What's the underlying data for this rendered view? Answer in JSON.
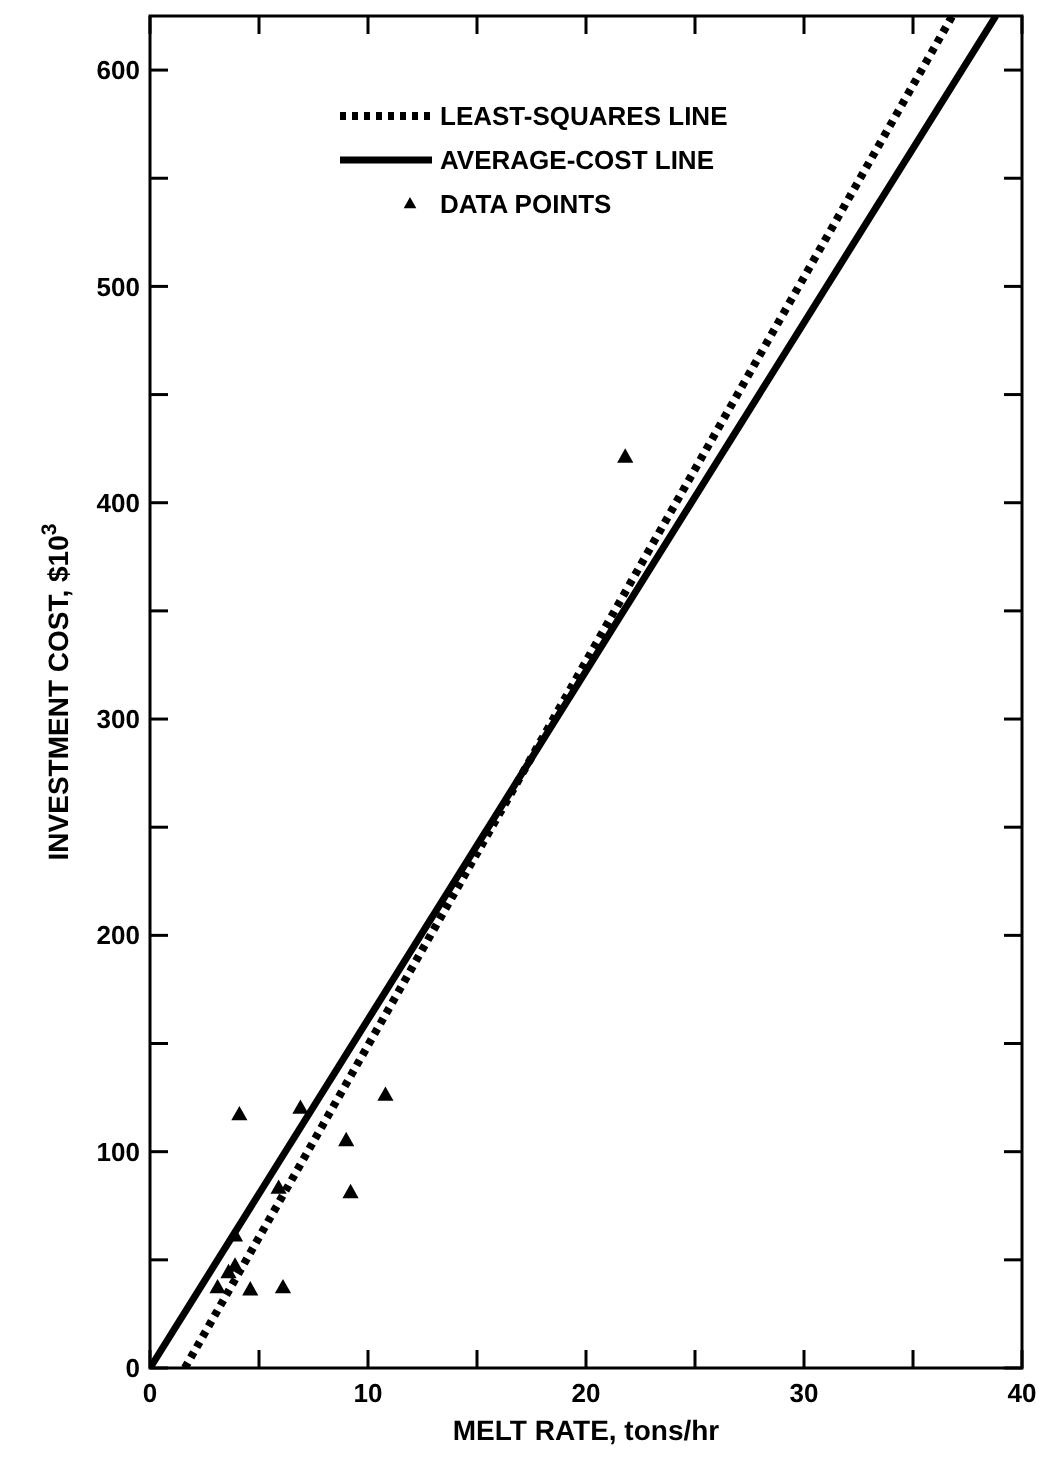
{
  "chart_data": {
    "type": "scatter",
    "xlabel": "MELT RATE, tons/hr",
    "ylabel": "INVESTMENT COST, $10$^{3}$",
    "xlim": [
      0,
      40
    ],
    "ylim": [
      0,
      625
    ],
    "xticks": [
      0,
      {
        "value": 5,
        "label": null
      },
      10,
      {
        "value": 15,
        "label": null
      },
      20,
      {
        "value": 25,
        "label": null
      },
      30,
      {
        "value": 35,
        "label": null
      },
      40
    ],
    "yticks": [
      0,
      {
        "value": 50,
        "label": null
      },
      100,
      {
        "value": 150,
        "label": null
      },
      200,
      {
        "value": 250,
        "label": null
      },
      300,
      {
        "value": 350,
        "label": null
      },
      400,
      {
        "value": 450,
        "label": null
      },
      500,
      {
        "value": 550,
        "label": null
      },
      600
    ],
    "grid": false,
    "legend": "top",
    "series": [
      {
        "name": "LEAST-SQUARES LINE",
        "type": "line",
        "line_style": "dotted",
        "color": "#000000",
        "x": [
          1.6,
          36.8
        ],
        "values": [
          0,
          625
        ]
      },
      {
        "name": "AVERAGE-COST LINE",
        "type": "line",
        "line_style": "solid",
        "color": "#000000",
        "x": [
          0,
          38.8
        ],
        "values": [
          0,
          625
        ]
      },
      {
        "name": "DATA POINTS",
        "marker": "triangle",
        "color": "#000000",
        "x": [
          4.1,
          6.9,
          10.8,
          9.0,
          9.2,
          5.9,
          3.9,
          3.1,
          3.6,
          3.9,
          4.6,
          6.1,
          21.8
        ],
        "values": [
          117,
          120,
          126,
          105,
          81,
          83,
          61,
          37,
          44,
          47,
          36,
          37,
          421
        ]
      }
    ]
  }
}
